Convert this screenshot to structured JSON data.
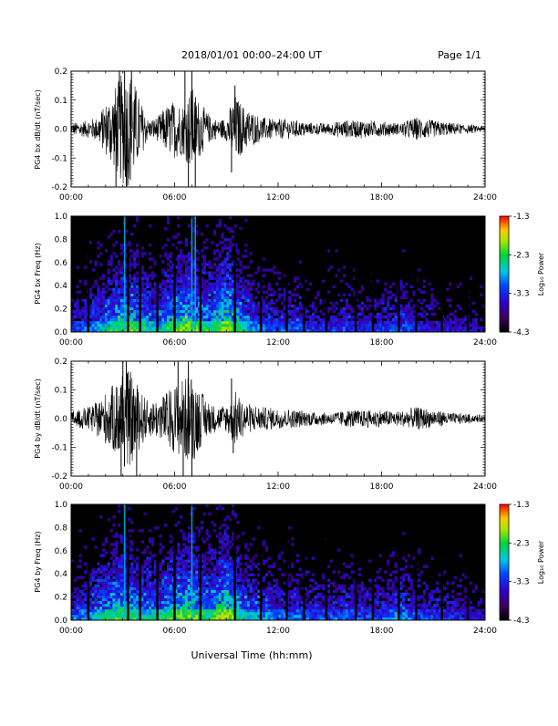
{
  "header": {
    "title": "2018/01/01   00:00–24:00 UT",
    "page": "Page 1/1"
  },
  "footer": {
    "xlabel": "Universal Time (hh:mm)"
  },
  "chart_data": [
    {
      "type": "line",
      "name": "bx-timeseries",
      "ylabel": "PG4 bx dB/dt (nT/sec)",
      "xticks": [
        "00:00",
        "06:00",
        "12:00",
        "18:00",
        "24:00"
      ],
      "xlim": [
        0,
        24
      ],
      "ylim": [
        -0.2,
        0.2
      ],
      "yticks": [
        "-0.2",
        "-0.1",
        "0.0",
        "0.1",
        "0.2"
      ],
      "ytick_values": [
        -0.2,
        -0.1,
        0.0,
        0.1,
        0.2
      ],
      "envelope": {
        "hours": [
          0,
          1,
          1.5,
          2,
          2.5,
          3,
          3.5,
          4,
          4.5,
          5,
          5.5,
          6,
          6.5,
          7,
          7.5,
          8,
          8.5,
          9,
          9.5,
          10,
          11,
          12,
          13,
          14,
          15,
          16,
          17,
          18,
          19,
          20,
          21,
          22,
          23,
          24
        ],
        "amplitude": [
          0.02,
          0.03,
          0.04,
          0.09,
          0.14,
          0.2,
          0.2,
          0.1,
          0.03,
          0.04,
          0.08,
          0.1,
          0.09,
          0.15,
          0.09,
          0.05,
          0.03,
          0.04,
          0.12,
          0.08,
          0.04,
          0.035,
          0.03,
          0.02,
          0.02,
          0.03,
          0.03,
          0.025,
          0.02,
          0.04,
          0.03,
          0.02,
          0.015,
          0.01
        ]
      },
      "spikes": [
        {
          "hour": 2.6,
          "y": -0.2
        },
        {
          "hour": 2.8,
          "y": 0.2
        },
        {
          "hour": 3.1,
          "y": 0.2
        },
        {
          "hour": 3.2,
          "y": -0.2
        },
        {
          "hour": 3.5,
          "y": 0.2
        },
        {
          "hour": 6.6,
          "y": 0.2
        },
        {
          "hour": 6.8,
          "y": -0.2
        },
        {
          "hour": 7.0,
          "y": 0.2
        },
        {
          "hour": 7.2,
          "y": -0.2
        },
        {
          "hour": 9.3,
          "y": -0.15
        },
        {
          "hour": 9.5,
          "y": 0.15
        }
      ]
    },
    {
      "type": "heatmap",
      "name": "bx-spectrogram",
      "ylabel": "PG4 bx Freq (Hz)",
      "xticks": [
        "00:00",
        "06:00",
        "12:00",
        "18:00",
        "24:00"
      ],
      "xlim": [
        0,
        24
      ],
      "ylim": [
        0.0,
        1.0
      ],
      "yticks": [
        "0.0",
        "0.2",
        "0.4",
        "0.6",
        "0.8",
        "1.0"
      ],
      "ytick_values": [
        0.0,
        0.2,
        0.4,
        0.6,
        0.8,
        1.0
      ],
      "colorbar": {
        "label": "Log₁₀ Power",
        "ticks": [
          "-1.3",
          "-2.3",
          "-3.3",
          "-4.3"
        ],
        "range": [
          -4.3,
          -1.3
        ]
      },
      "activity": {
        "hours": [
          0,
          1,
          2,
          3,
          4,
          5,
          6,
          7,
          8,
          9,
          10,
          11,
          12,
          13,
          14,
          15,
          16,
          17,
          18,
          19,
          20,
          21,
          22,
          23,
          24
        ],
        "level": [
          0.35,
          0.45,
          0.6,
          0.75,
          0.7,
          0.55,
          0.75,
          0.8,
          0.65,
          0.85,
          0.6,
          0.45,
          0.4,
          0.45,
          0.35,
          0.35,
          0.4,
          0.35,
          0.35,
          0.45,
          0.35,
          0.3,
          0.3,
          0.25,
          0.2
        ]
      },
      "bright_lines": [
        3.1,
        7.0,
        7.2
      ],
      "dark_gaps": [
        1.0,
        3.3,
        4.0,
        5.0,
        6.0,
        7.5,
        9.5,
        11.0,
        12.5,
        13.5,
        14.8,
        16.5,
        17.5,
        19.0,
        20.0,
        21.5,
        23.0
      ]
    },
    {
      "type": "line",
      "name": "by-timeseries",
      "ylabel": "PG4 by dB/dt (nT/sec)",
      "xticks": [
        "00:00",
        "06:00",
        "12:00",
        "18:00",
        "24:00"
      ],
      "xlim": [
        0,
        24
      ],
      "ylim": [
        -0.2,
        0.2
      ],
      "yticks": [
        "-0.2",
        "-0.1",
        "0.0",
        "0.1",
        "0.2"
      ],
      "ytick_values": [
        -0.2,
        -0.1,
        0.0,
        0.1,
        0.2
      ],
      "envelope": {
        "hours": [
          0,
          1,
          1.5,
          2,
          2.5,
          3,
          3.5,
          4,
          4.5,
          5,
          5.5,
          6,
          6.5,
          7,
          7.5,
          8,
          8.5,
          9,
          9.5,
          10,
          11,
          12,
          13,
          14,
          15,
          16,
          17,
          18,
          19,
          20,
          21,
          22,
          23,
          24
        ],
        "amplitude": [
          0.025,
          0.04,
          0.06,
          0.09,
          0.12,
          0.18,
          0.16,
          0.1,
          0.06,
          0.07,
          0.09,
          0.12,
          0.14,
          0.16,
          0.1,
          0.06,
          0.04,
          0.05,
          0.1,
          0.06,
          0.04,
          0.035,
          0.03,
          0.025,
          0.02,
          0.03,
          0.03,
          0.03,
          0.025,
          0.04,
          0.03,
          0.02,
          0.015,
          0.01
        ]
      },
      "spikes": [
        {
          "hour": 2.9,
          "y": -0.2
        },
        {
          "hour": 3.0,
          "y": 0.2
        },
        {
          "hour": 3.2,
          "y": 0.2
        },
        {
          "hour": 3.8,
          "y": -0.2
        },
        {
          "hour": 6.2,
          "y": 0.2
        },
        {
          "hour": 6.5,
          "y": -0.2
        },
        {
          "hour": 6.8,
          "y": 0.2
        },
        {
          "hour": 7.0,
          "y": -0.2
        },
        {
          "hour": 9.3,
          "y": 0.14
        },
        {
          "hour": 9.4,
          "y": -0.12
        }
      ]
    },
    {
      "type": "heatmap",
      "name": "by-spectrogram",
      "ylabel": "PG4 by Freq (Hz)",
      "xticks": [
        "00:00",
        "06:00",
        "12:00",
        "18:00",
        "24:00"
      ],
      "xlim": [
        0,
        24
      ],
      "ylim": [
        0.0,
        1.0
      ],
      "yticks": [
        "0.0",
        "0.2",
        "0.4",
        "0.6",
        "0.8",
        "1.0"
      ],
      "ytick_values": [
        0.0,
        0.2,
        0.4,
        0.6,
        0.8,
        1.0
      ],
      "colorbar": {
        "label": "Log₁₀ Power",
        "ticks": [
          "-1.3",
          "-2.3",
          "-3.3",
          "-4.3"
        ],
        "range": [
          -4.3,
          -1.3
        ]
      },
      "activity": {
        "hours": [
          0,
          1,
          2,
          3,
          4,
          5,
          6,
          7,
          8,
          9,
          10,
          11,
          12,
          13,
          14,
          15,
          16,
          17,
          18,
          19,
          20,
          21,
          22,
          23,
          24
        ],
        "level": [
          0.4,
          0.5,
          0.65,
          0.75,
          0.65,
          0.6,
          0.75,
          0.8,
          0.65,
          0.85,
          0.6,
          0.5,
          0.45,
          0.45,
          0.4,
          0.4,
          0.45,
          0.4,
          0.4,
          0.5,
          0.4,
          0.35,
          0.35,
          0.3,
          0.25
        ]
      },
      "bright_lines": [
        3.1,
        7.0
      ],
      "dark_gaps": [
        1.0,
        3.3,
        4.0,
        5.0,
        6.0,
        7.5,
        9.5,
        11.0,
        12.5,
        13.5,
        14.8,
        16.5,
        17.5,
        19.0,
        20.0,
        21.5,
        23.0
      ]
    }
  ]
}
